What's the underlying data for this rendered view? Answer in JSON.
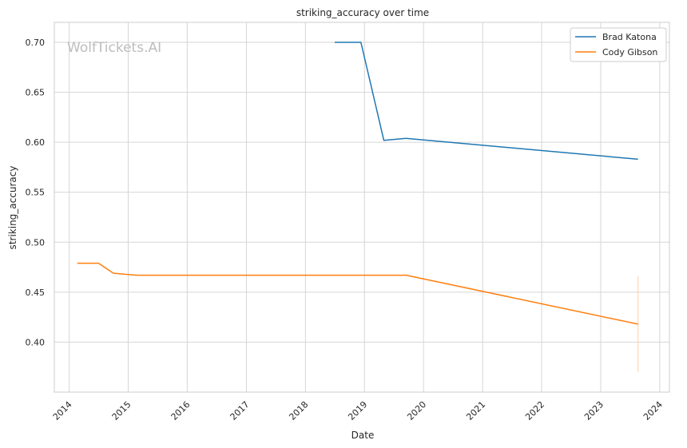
{
  "chart_data": {
    "type": "line",
    "title": "striking_accuracy over time",
    "xlabel": "Date",
    "ylabel": "striking_accuracy",
    "watermark": "WolfTickets.AI",
    "xlim": [
      "2013-10-01",
      "2024-03-01"
    ],
    "ylim": [
      0.35,
      0.72
    ],
    "x_ticks": [
      "2014",
      "2015",
      "2016",
      "2017",
      "2018",
      "2019",
      "2020",
      "2021",
      "2022",
      "2023",
      "2024"
    ],
    "y_ticks": [
      "0.40",
      "0.45",
      "0.50",
      "0.55",
      "0.60",
      "0.65",
      "0.70"
    ],
    "grid": true,
    "legend_position": "top-right",
    "series": [
      {
        "name": "Brad Katona",
        "color": "#1f77b4",
        "points": [
          [
            "2018-07-01",
            0.7
          ],
          [
            "2018-12-10",
            0.7
          ],
          [
            "2019-05-01",
            0.602
          ],
          [
            "2019-09-15",
            0.604
          ],
          [
            "2023-08-20",
            0.583
          ]
        ]
      },
      {
        "name": "Cody Gibson",
        "color": "#ff7f0e",
        "points": [
          [
            "2014-02-20",
            0.479
          ],
          [
            "2014-07-01",
            0.479
          ],
          [
            "2014-10-01",
            0.469
          ],
          [
            "2015-02-20",
            0.467
          ],
          [
            "2019-09-15",
            0.467
          ],
          [
            "2023-08-20",
            0.418
          ]
        ]
      }
    ],
    "error_band": {
      "color": "#ffcfa0",
      "date": "2023-08-20",
      "low": 0.37,
      "high": 0.466
    }
  }
}
